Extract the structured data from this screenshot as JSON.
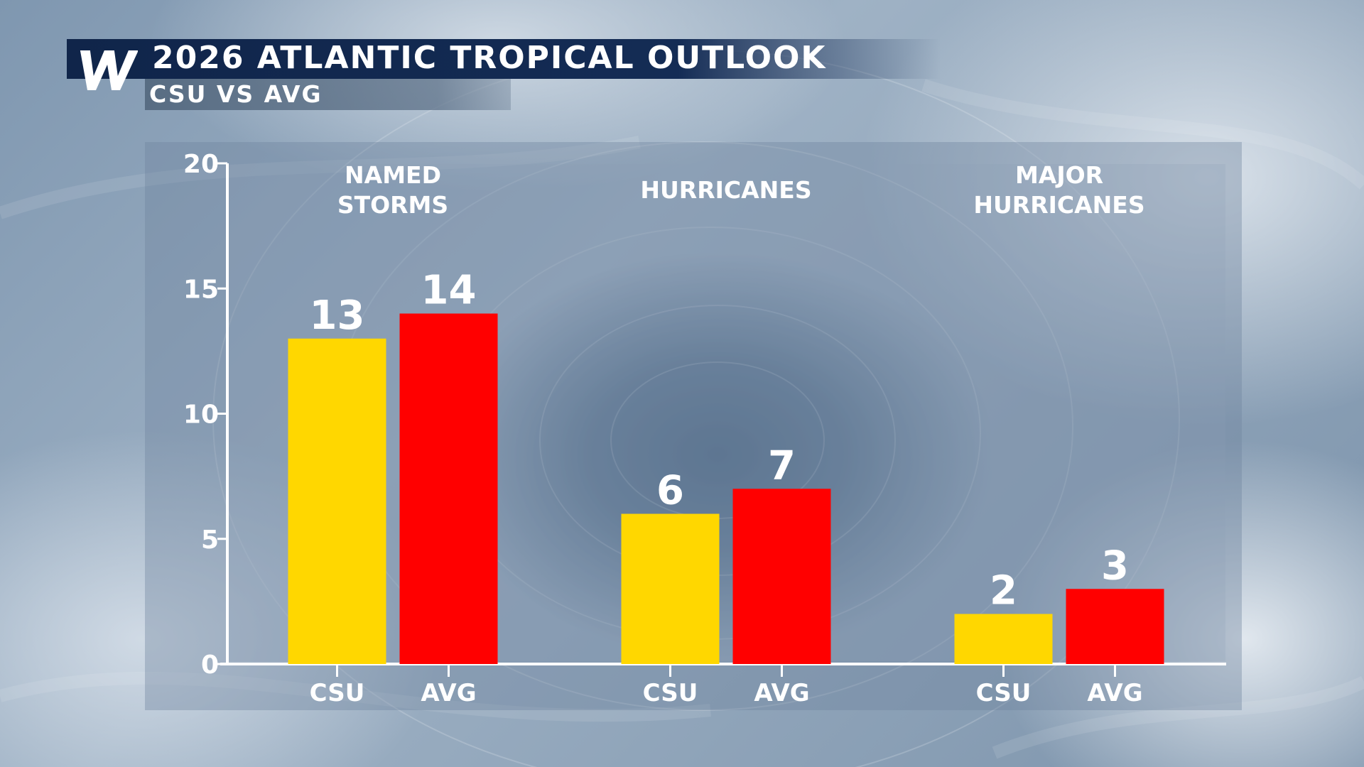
{
  "header": {
    "title": "2026 ATLANTIC TROPICAL OUTLOOK",
    "subtitle": "CSU VS AVG",
    "logo_letter": "W"
  },
  "colors": {
    "csu": "#FFD700",
    "avg": "#FF0000",
    "title_bar": "#10254a",
    "axis": "#ffffff"
  },
  "chart_data": {
    "type": "bar",
    "title": "2026 ATLANTIC TROPICAL OUTLOOK",
    "subtitle": "CSU VS AVG",
    "groups": [
      {
        "label_lines": [
          "NAMED",
          "STORMS"
        ],
        "categories": [
          "CSU",
          "AVG"
        ],
        "values": [
          13,
          14
        ]
      },
      {
        "label_lines": [
          "HURRICANES"
        ],
        "categories": [
          "CSU",
          "AVG"
        ],
        "values": [
          6,
          7
        ]
      },
      {
        "label_lines": [
          "MAJOR",
          "HURRICANES"
        ],
        "categories": [
          "CSU",
          "AVG"
        ],
        "values": [
          2,
          3
        ]
      }
    ],
    "series": [
      {
        "name": "CSU",
        "values": [
          13,
          6,
          2
        ]
      },
      {
        "name": "AVG",
        "values": [
          14,
          7,
          3
        ]
      }
    ],
    "ylim": [
      0,
      20
    ],
    "yticks": [
      0,
      5,
      10,
      15,
      20
    ],
    "data_labels": true,
    "grid": false,
    "legend": "none"
  }
}
